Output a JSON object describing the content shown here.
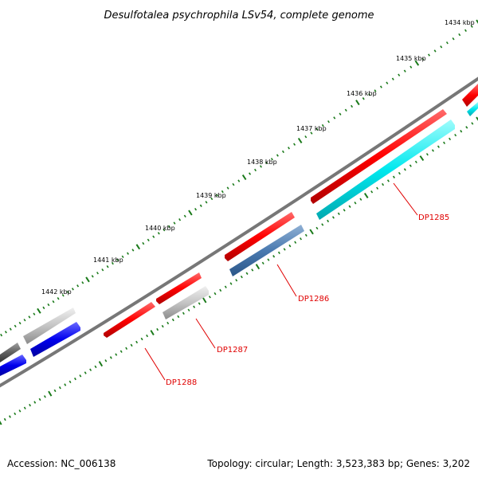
{
  "title": "Desulfotalea psychrophila LSv54, complete genome",
  "footer": {
    "accession": "Accession: NC_006138",
    "stats": "Topology: circular; Length: 3,523,383 bp; Genes: 3,202"
  },
  "colors": {
    "backbone": "#777777",
    "tick": "#1a7a1a",
    "label": "#e00000",
    "leader": "#e00000"
  },
  "ticks": [
    {
      "label": "1434 kbp"
    },
    {
      "label": "1435 kbp"
    },
    {
      "label": "1436 kbp"
    },
    {
      "label": "1437 kbp"
    },
    {
      "label": "1438 kbp"
    },
    {
      "label": "1439 kbp"
    },
    {
      "label": "1440 kbp"
    },
    {
      "label": "1441 kbp"
    },
    {
      "label": "1442 kbp"
    }
  ],
  "genes": [
    {
      "name": "DP1285",
      "labeled": true
    },
    {
      "name": "DP1286",
      "labeled": true
    },
    {
      "name": "DP1287",
      "labeled": true
    },
    {
      "name": "DP1288",
      "labeled": true
    }
  ]
}
